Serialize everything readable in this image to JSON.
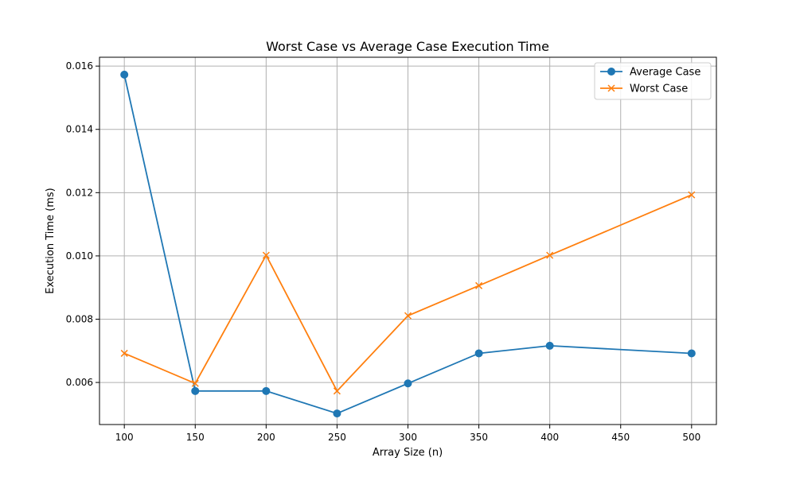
{
  "chart_data": {
    "type": "line",
    "title": "Worst Case vs Average Case Execution Time",
    "xlabel": "Array Size (n)",
    "ylabel": "Execution Time (ms)",
    "x": [
      100,
      150,
      200,
      250,
      300,
      350,
      400,
      500
    ],
    "series": [
      {
        "name": "Average Case",
        "color": "#1f77b4",
        "marker": "circle",
        "values": [
          0.01573,
          0.00573,
          0.00573,
          0.00502,
          0.00597,
          0.00692,
          0.00716,
          0.00692
        ]
      },
      {
        "name": "Worst Case",
        "color": "#ff7f0e",
        "marker": "x",
        "values": [
          0.00692,
          0.00597,
          0.01002,
          0.00573,
          0.00811,
          0.00906,
          0.01002,
          0.01193
        ]
      }
    ],
    "xlim": [
      82.5,
      517.5
    ],
    "ylim": [
      0.00467,
      0.01628
    ],
    "xticks": [
      100,
      150,
      200,
      250,
      300,
      350,
      400,
      450,
      500
    ],
    "xtick_labels": [
      "100",
      "150",
      "200",
      "250",
      "300",
      "350",
      "400",
      "450",
      "500"
    ],
    "yticks": [
      0.006,
      0.008,
      0.01,
      0.012,
      0.014,
      0.016
    ],
    "ytick_labels": [
      "0.006",
      "0.008",
      "0.010",
      "0.012",
      "0.014",
      "0.016"
    ],
    "grid": true,
    "legend_position": "top-right"
  }
}
